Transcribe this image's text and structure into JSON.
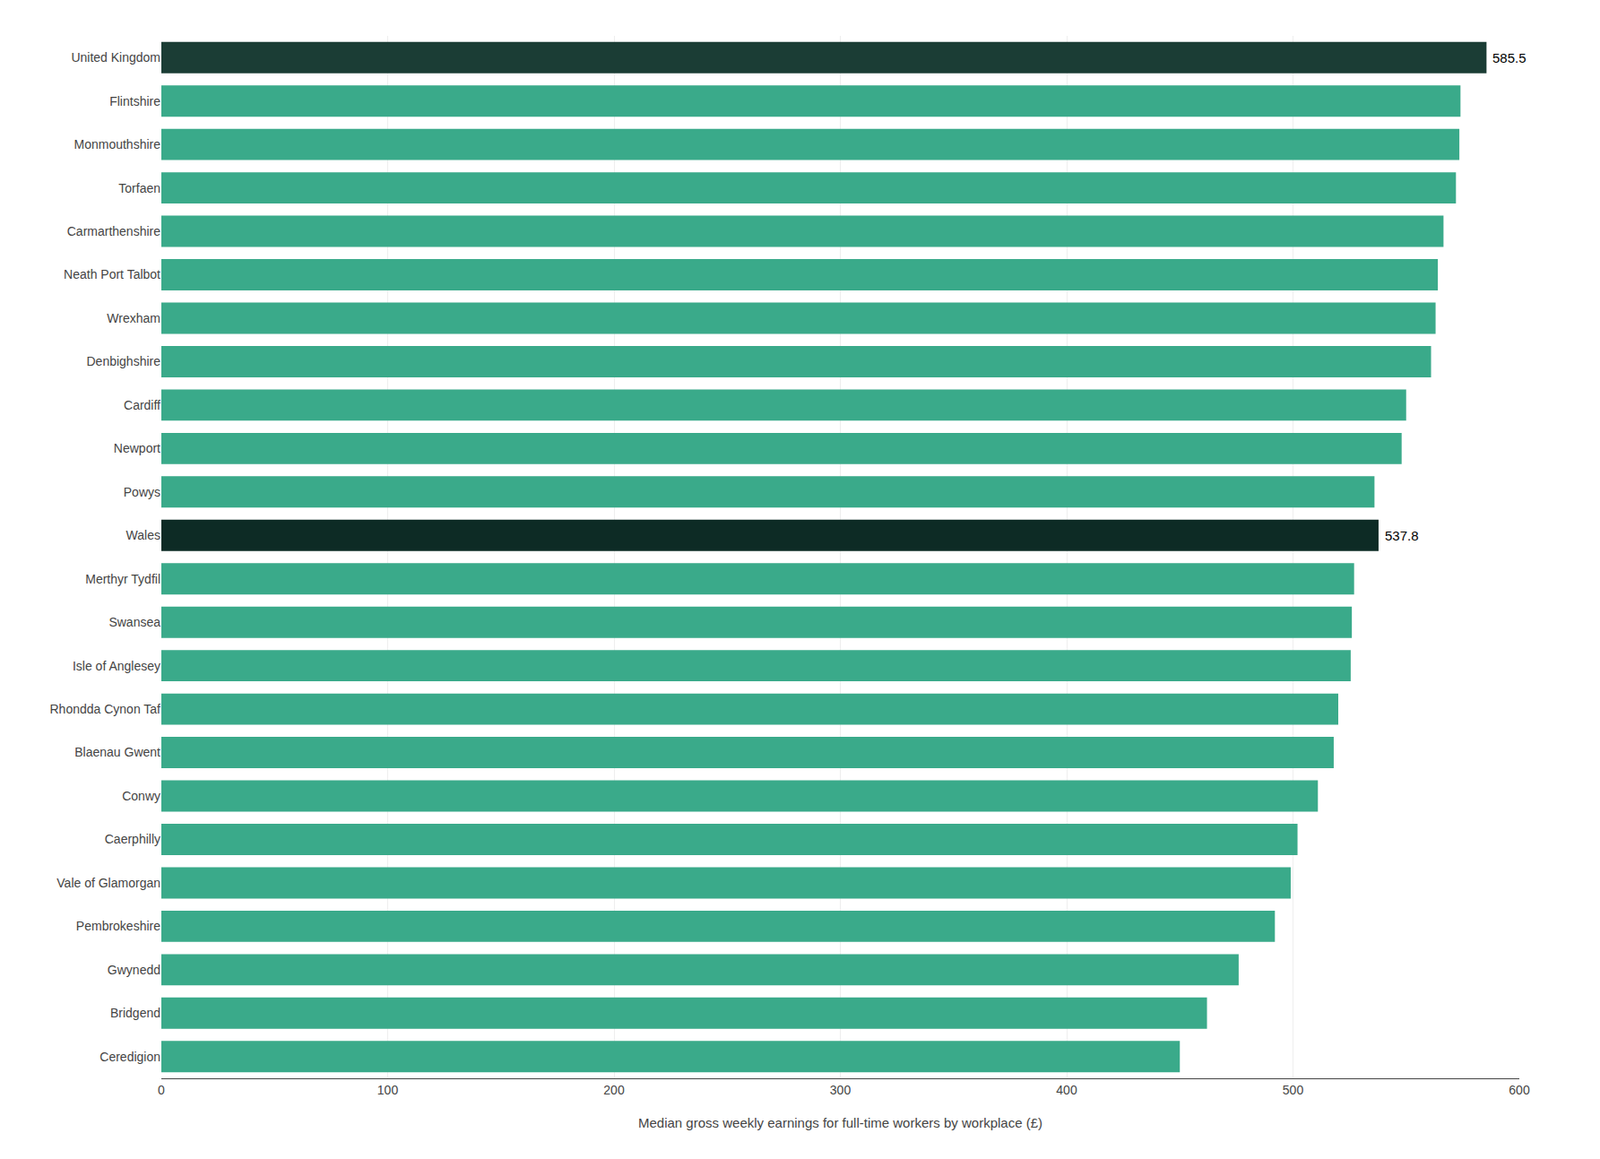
{
  "chart_data": {
    "type": "bar",
    "orientation": "horizontal",
    "categories": [
      "United Kingdom",
      "Flintshire",
      "Monmouthshire",
      "Torfaen",
      "Carmarthenshire",
      "Neath Port Talbot",
      "Wrexham",
      "Denbighshire",
      "Cardiff",
      "Newport",
      "Powys",
      "Wales",
      "Merthyr Tydfil",
      "Swansea",
      "Isle of Anglesey",
      "Rhondda Cynon Taf",
      "Blaenau Gwent",
      "Conwy",
      "Caerphilly",
      "Vale of Glamorgan",
      "Pembrokeshire",
      "Gwynedd",
      "Bridgend",
      "Ceredigion"
    ],
    "values": [
      585.5,
      574.0,
      573.5,
      572.0,
      566.5,
      564.0,
      563.0,
      561.0,
      550.0,
      548.0,
      536.0,
      537.8,
      527.0,
      526.0,
      525.5,
      520.0,
      518.0,
      511.0,
      502.0,
      499.0,
      492.0,
      476.0,
      462.0,
      450.0
    ],
    "colors": [
      "#1b3d35",
      "#3aaa8a",
      "#3aaa8a",
      "#3aaa8a",
      "#3aaa8a",
      "#3aaa8a",
      "#3aaa8a",
      "#3aaa8a",
      "#3aaa8a",
      "#3aaa8a",
      "#3aaa8a",
      "#0d2b25",
      "#3aaa8a",
      "#3aaa8a",
      "#3aaa8a",
      "#3aaa8a",
      "#3aaa8a",
      "#3aaa8a",
      "#3aaa8a",
      "#3aaa8a",
      "#3aaa8a",
      "#3aaa8a",
      "#3aaa8a",
      "#3aaa8a"
    ],
    "annotations": [
      {
        "category": "United Kingdom",
        "text": "585.5"
      },
      {
        "category": "Wales",
        "text": "537.8"
      }
    ],
    "xlabel": "Median gross weekly earnings for full-time workers by workplace (£)",
    "xlim": [
      0,
      600
    ],
    "xticks": [
      0,
      100,
      200,
      300,
      400,
      500,
      600
    ],
    "grid": true
  }
}
